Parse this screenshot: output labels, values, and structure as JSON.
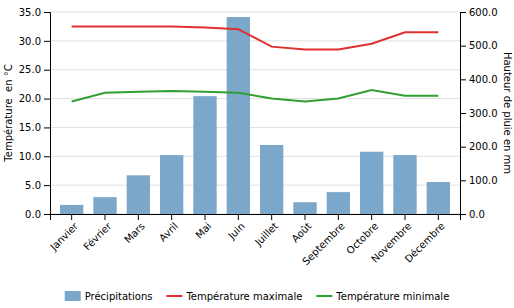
{
  "chart_data": {
    "type": "bar",
    "categories": [
      "Janvier",
      "Février",
      "Mars",
      "Avril",
      "Mai",
      "Juin",
      "Juillet",
      "Août",
      "Septembre",
      "Octobre",
      "Novembre",
      "Décembre"
    ],
    "series": [
      {
        "name": "Précipitations",
        "type": "bar",
        "axis": "y2",
        "color": "#7ba7cb",
        "values": [
          27,
          50,
          115,
          175,
          350,
          585,
          205,
          35,
          65,
          185,
          175,
          95
        ]
      },
      {
        "name": "Température maximale",
        "type": "line",
        "color": "#e03030",
        "values": [
          32.5,
          32.5,
          32.5,
          32.5,
          32.3,
          32.0,
          29.0,
          28.5,
          28.5,
          29.5,
          31.5,
          31.5
        ]
      },
      {
        "name": "Température minimale",
        "type": "line",
        "color": "#30a030",
        "values": [
          19.5,
          21.0,
          21.2,
          21.3,
          21.2,
          21.0,
          20.0,
          19.5,
          20.0,
          21.5,
          20.5,
          20.5
        ]
      }
    ],
    "ylabel": "Température  en °C",
    "y2label": "Hauteur de pluie en mm",
    "ylim": [
      0,
      35.0
    ],
    "yticks": [
      {
        "value": 0.0,
        "label": "0.0"
      },
      {
        "value": 5.0,
        "label": "5.0"
      },
      {
        "value": 10.0,
        "label": "10.0"
      },
      {
        "value": 15.0,
        "label": "15.0"
      },
      {
        "value": 20.0,
        "label": "20.0"
      },
      {
        "value": 25.0,
        "label": "25.0"
      },
      {
        "value": 30.0,
        "label": "30.0"
      },
      {
        "value": 35.0,
        "label": "35.0"
      }
    ],
    "y2lim": [
      0,
      600.0
    ],
    "y2ticks": [
      {
        "value": 0.0,
        "label": "0.0"
      },
      {
        "value": 100.0,
        "label": "100.0"
      },
      {
        "value": 200.0,
        "label": "200.0"
      },
      {
        "value": 300.0,
        "label": "300.0"
      },
      {
        "value": 400.0,
        "label": "400.0"
      },
      {
        "value": 500.0,
        "label": "500.0"
      },
      {
        "value": 600.0,
        "label": "600.0"
      }
    ],
    "grid": true,
    "legend": "bottom"
  }
}
